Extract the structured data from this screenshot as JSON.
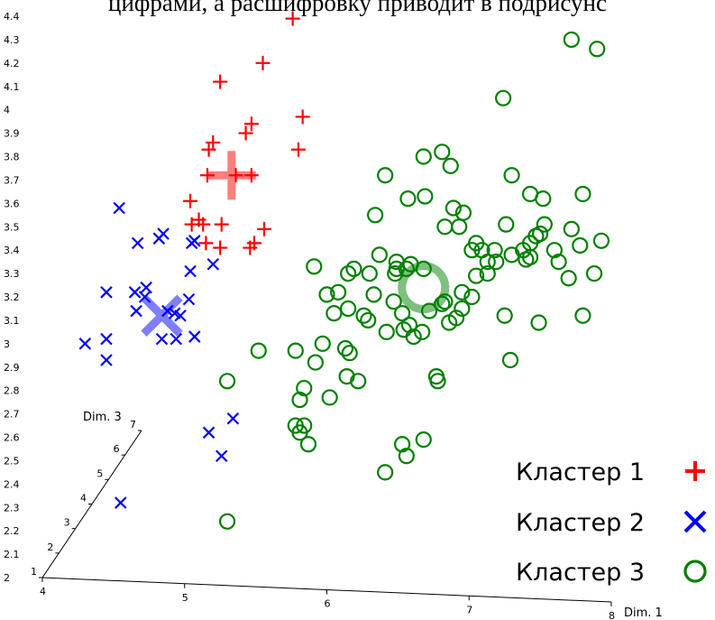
{
  "page": {
    "caption": "цифрами, а расшифровку приводит в подрисунс"
  },
  "chart_data": {
    "type": "scatter",
    "view": "3d-projection",
    "title": "",
    "axes": {
      "x": {
        "label": "Dim. 1",
        "range": [
          4,
          8
        ],
        "ticks": [
          "4",
          "5",
          "6",
          "7",
          "8"
        ]
      },
      "y": {
        "label": "",
        "range": [
          2,
          4.4
        ],
        "ticks": [
          "2",
          "2.1",
          "2.2",
          "2.3",
          "2.4",
          "2.5",
          "2.6",
          "2.7",
          "2.8",
          "2.9",
          "3",
          "3.1",
          "3.2",
          "3.3",
          "3.4",
          "3.5",
          "3.6",
          "3.7",
          "3.8",
          "3.9",
          "4",
          "4.1",
          "4.2",
          "4.3",
          "4.4"
        ]
      },
      "z": {
        "label": "Dim. 3",
        "range": [
          1,
          7
        ],
        "ticks": [
          "1",
          "2",
          "3",
          "4",
          "5",
          "6",
          "7"
        ]
      }
    },
    "grid": false,
    "legend": {
      "placement": "bottom-right",
      "entries": [
        {
          "label": "Кластер 1",
          "color": "#ff0000",
          "marker": "plus"
        },
        {
          "label": "Кластер 2",
          "color": "#0000ff",
          "marker": "cross"
        },
        {
          "label": "Кластер 3",
          "color": "#008000",
          "marker": "circle"
        }
      ]
    },
    "series": [
      {
        "name": "Кластер 1",
        "color": "#ff0000",
        "marker": "plus",
        "centroid": [
          5.33,
          3.72
        ],
        "points": [
          [
            5.76,
            4.39
          ],
          [
            5.55,
            4.2
          ],
          [
            5.25,
            4.12
          ],
          [
            5.83,
            3.97
          ],
          [
            5.47,
            3.94
          ],
          [
            5.43,
            3.9
          ],
          [
            5.2,
            3.86
          ],
          [
            5.17,
            3.83
          ],
          [
            5.8,
            3.83
          ],
          [
            5.16,
            3.72
          ],
          [
            5.36,
            3.72
          ],
          [
            5.47,
            3.72
          ],
          [
            5.04,
            3.61
          ],
          [
            5.1,
            3.53
          ],
          [
            5.05,
            3.51
          ],
          [
            5.13,
            3.51
          ],
          [
            5.26,
            3.51
          ],
          [
            5.56,
            3.49
          ],
          [
            5.15,
            3.43
          ],
          [
            5.25,
            3.41
          ],
          [
            5.49,
            3.43
          ],
          [
            5.46,
            3.41
          ]
        ]
      },
      {
        "name": "Кластер 2",
        "color": "#0000ff",
        "marker": "cross",
        "centroid": [
          4.84,
          3.12
        ],
        "points": [
          [
            4.54,
            3.58
          ],
          [
            4.67,
            3.43
          ],
          [
            4.85,
            3.47
          ],
          [
            4.82,
            3.45
          ],
          [
            5.07,
            3.44
          ],
          [
            5.05,
            3.43
          ],
          [
            5.2,
            3.34
          ],
          [
            5.04,
            3.31
          ],
          [
            4.45,
            3.22
          ],
          [
            4.73,
            3.24
          ],
          [
            4.65,
            3.22
          ],
          [
            4.72,
            3.2
          ],
          [
            5.03,
            3.19
          ],
          [
            4.66,
            3.14
          ],
          [
            4.88,
            3.14
          ],
          [
            4.97,
            3.12
          ],
          [
            4.93,
            3.13
          ],
          [
            4.3,
            3.0
          ],
          [
            4.45,
            3.02
          ],
          [
            4.84,
            3.02
          ],
          [
            4.94,
            3.02
          ],
          [
            5.07,
            3.03
          ],
          [
            4.45,
            2.93
          ],
          [
            5.34,
            2.68
          ],
          [
            5.17,
            2.62
          ],
          [
            5.26,
            2.52
          ],
          [
            4.55,
            2.32
          ]
        ]
      },
      {
        "name": "Кластер 3",
        "color": "#008000",
        "marker": "circle",
        "centroid": [
          6.68,
          3.24
        ],
        "points": [
          [
            7.72,
            4.3
          ],
          [
            7.9,
            4.26
          ],
          [
            7.24,
            4.05
          ],
          [
            6.81,
            3.82
          ],
          [
            6.68,
            3.8
          ],
          [
            6.87,
            3.76
          ],
          [
            6.41,
            3.72
          ],
          [
            7.3,
            3.72
          ],
          [
            6.69,
            3.63
          ],
          [
            6.57,
            3.62
          ],
          [
            7.43,
            3.64
          ],
          [
            7.52,
            3.62
          ],
          [
            7.8,
            3.64
          ],
          [
            6.89,
            3.58
          ],
          [
            6.96,
            3.56
          ],
          [
            6.34,
            3.55
          ],
          [
            6.83,
            3.5
          ],
          [
            6.93,
            3.5
          ],
          [
            7.26,
            3.51
          ],
          [
            7.53,
            3.51
          ],
          [
            7.5,
            3.47
          ],
          [
            7.47,
            3.46
          ],
          [
            7.05,
            3.43
          ],
          [
            7.02,
            3.4
          ],
          [
            7.09,
            3.4
          ],
          [
            7.18,
            3.4
          ],
          [
            7.43,
            3.43
          ],
          [
            7.38,
            3.4
          ],
          [
            7.3,
            3.38
          ],
          [
            7.72,
            3.49
          ],
          [
            7.93,
            3.44
          ],
          [
            7.78,
            3.42
          ],
          [
            7.13,
            3.35
          ],
          [
            7.19,
            3.35
          ],
          [
            6.37,
            3.38
          ],
          [
            6.49,
            3.35
          ],
          [
            6.68,
            3.32
          ],
          [
            6.56,
            3.32
          ],
          [
            7.4,
            3.36
          ],
          [
            7.6,
            3.4
          ],
          [
            7.43,
            3.37
          ],
          [
            7.63,
            3.35
          ],
          [
            7.7,
            3.28
          ],
          [
            7.05,
            3.29
          ],
          [
            6.59,
            3.34
          ],
          [
            6.48,
            3.3
          ],
          [
            6.19,
            3.32
          ],
          [
            6.15,
            3.3
          ],
          [
            5.91,
            3.33
          ],
          [
            6.3,
            3.3
          ],
          [
            6.49,
            3.32
          ],
          [
            7.13,
            3.3
          ],
          [
            7.88,
            3.3
          ],
          [
            6.08,
            3.22
          ],
          [
            6.33,
            3.21
          ],
          [
            6.0,
            3.21
          ],
          [
            6.05,
            3.13
          ],
          [
            6.26,
            3.12
          ],
          [
            6.47,
            3.18
          ],
          [
            6.53,
            3.13
          ],
          [
            6.72,
            3.14
          ],
          [
            6.81,
            3.17
          ],
          [
            6.83,
            3.18
          ],
          [
            6.86,
            3.09
          ],
          [
            6.91,
            3.11
          ],
          [
            6.95,
            3.22
          ],
          [
            7.02,
            3.2
          ],
          [
            6.95,
            3.15
          ],
          [
            6.15,
            3.15
          ],
          [
            6.54,
            3.06
          ],
          [
            6.58,
            3.08
          ],
          [
            6.29,
            3.1
          ],
          [
            6.67,
            3.05
          ],
          [
            5.97,
            3.0
          ],
          [
            5.78,
            2.97
          ],
          [
            5.92,
            2.92
          ],
          [
            6.16,
            2.96
          ],
          [
            6.13,
            2.98
          ],
          [
            6.42,
            3.05
          ],
          [
            6.61,
            3.03
          ],
          [
            7.25,
            3.12
          ],
          [
            7.49,
            3.09
          ],
          [
            7.8,
            3.12
          ],
          [
            5.52,
            2.97
          ],
          [
            6.14,
            2.86
          ],
          [
            6.22,
            2.84
          ],
          [
            6.78,
            2.84
          ],
          [
            6.77,
            2.86
          ],
          [
            5.81,
            2.76
          ],
          [
            5.84,
            2.81
          ],
          [
            6.02,
            2.77
          ],
          [
            7.29,
            2.93
          ],
          [
            5.3,
            2.84
          ],
          [
            5.78,
            2.65
          ],
          [
            5.84,
            2.65
          ],
          [
            5.81,
            2.62
          ],
          [
            5.87,
            2.57
          ],
          [
            6.53,
            2.57
          ],
          [
            6.68,
            2.59
          ],
          [
            6.41,
            2.45
          ],
          [
            6.56,
            2.52
          ],
          [
            5.3,
            2.24
          ]
        ]
      }
    ]
  }
}
